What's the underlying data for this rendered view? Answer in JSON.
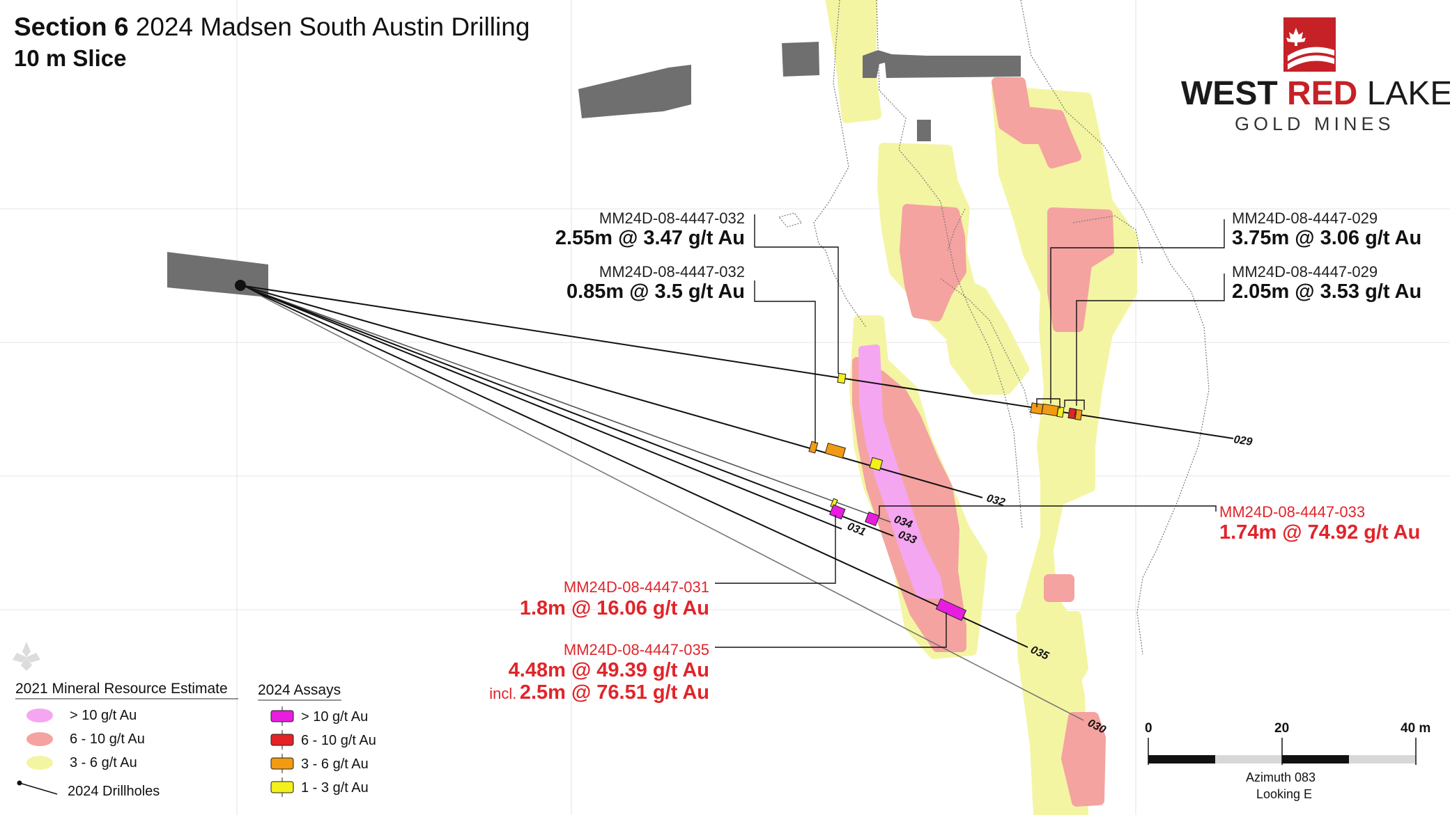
{
  "title": {
    "section_bold": "Section 6",
    "section_rest": "2024 Madsen South Austin Drilling",
    "slice": "10 m Slice"
  },
  "logo": {
    "west": "WEST",
    "red": "RED",
    "lake": "LAKE",
    "gold": "GOLD MINES",
    "brand_color": "#c62127"
  },
  "intercepts": [
    {
      "hole": "MM24D-08-4447-032",
      "value": "2.55m @ 3.47 g/t Au",
      "highlight": false
    },
    {
      "hole": "MM24D-08-4447-032",
      "value": "0.85m @ 3.5 g/t Au",
      "highlight": false
    },
    {
      "hole": "MM24D-08-4447-029",
      "value": "3.75m @ 3.06 g/t Au",
      "highlight": false
    },
    {
      "hole": "MM24D-08-4447-029",
      "value": "2.05m @ 3.53 g/t Au",
      "highlight": false
    },
    {
      "hole": "MM24D-08-4447-033",
      "value": "1.74m @ 74.92 g/t Au",
      "highlight": true
    },
    {
      "hole": "MM24D-08-4447-031",
      "value": "1.8m @ 16.06 g/t Au",
      "highlight": true
    },
    {
      "hole": "MM24D-08-4447-035",
      "value": "4.48m @ 49.39 g/t Au",
      "highlight": true,
      "incl_prefix": "incl.",
      "incl_value": "2.5m @ 76.51 g/t Au"
    }
  ],
  "drillholes": [
    "029",
    "032",
    "034",
    "031",
    "033",
    "035",
    "030"
  ],
  "legend": {
    "mre_title": "2021 Mineral Resource Estimate",
    "mre_items": [
      {
        "label": "> 10 g/t Au",
        "color": "#f5a6f0"
      },
      {
        "label": "6 - 10 g/t Au",
        "color": "#f4a3a0"
      },
      {
        "label": "3 - 6 g/t Au",
        "color": "#f3f5a3"
      }
    ],
    "drillholes_label": "2024 Drillholes",
    "assays_title": "2024 Assays",
    "assay_items": [
      {
        "label": "> 10 g/t Au",
        "color": "#e71de0"
      },
      {
        "label": "6 - 10 g/t Au",
        "color": "#e52226"
      },
      {
        "label": "3 - 6 g/t Au",
        "color": "#f29a12"
      },
      {
        "label": "1 - 3 g/t Au",
        "color": "#f3f01b"
      }
    ]
  },
  "scale_bar": {
    "ticks": [
      "0",
      "20",
      "40 m"
    ],
    "azimuth": "Azimuth 083",
    "looking": "Looking E"
  },
  "colors": {
    "workings": "#6f6f6f",
    "grid": "#e6e6e6",
    "highlight_text": "#e1242a"
  }
}
